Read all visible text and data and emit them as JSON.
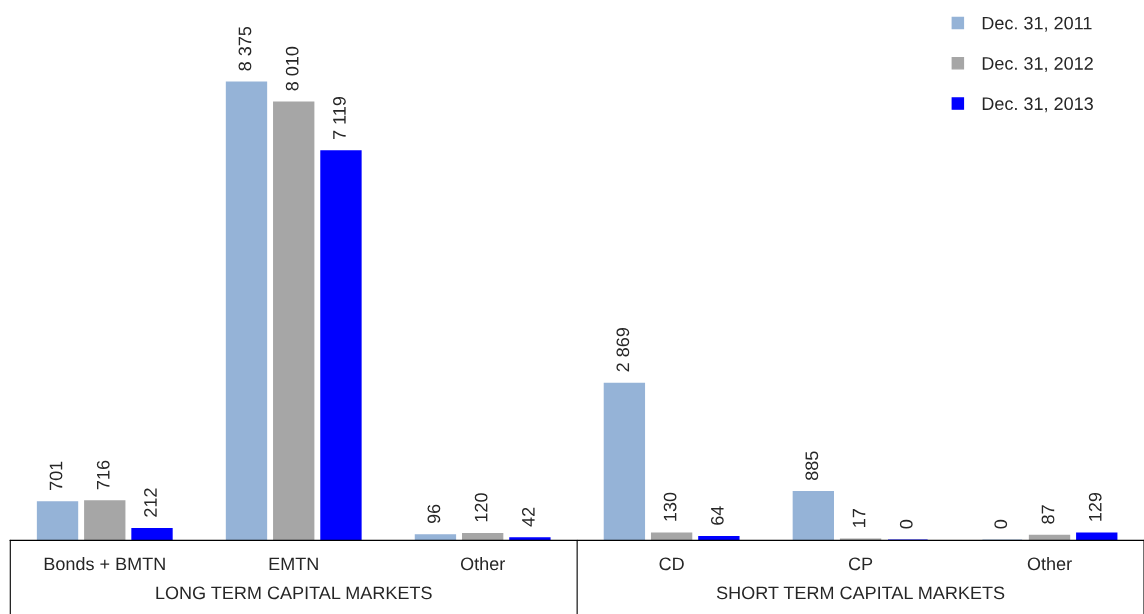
{
  "chart_data": {
    "type": "bar",
    "categories": [
      "Bonds + BMTN",
      "EMTN",
      "Other",
      "CD",
      "CP",
      "Other"
    ],
    "series": [
      {
        "name": "Dec. 31, 2011",
        "color": "#95b3d7",
        "values": [
          701,
          8375,
          96,
          2869,
          885,
          0
        ],
        "value_labels": [
          "701",
          "8 375",
          "96",
          "2 869",
          "885",
          "0"
        ]
      },
      {
        "name": "Dec. 31, 2012",
        "color": "#a6a6a6",
        "values": [
          716,
          8010,
          120,
          130,
          17,
          87
        ],
        "value_labels": [
          "716",
          "8 010",
          "120",
          "130",
          "17",
          "87"
        ]
      },
      {
        "name": "Dec. 31, 2013",
        "color": "#0000ff",
        "values": [
          212,
          7119,
          42,
          64,
          0,
          129
        ],
        "value_labels": [
          "212",
          "7 119",
          "42",
          "64",
          "0",
          "129"
        ]
      }
    ],
    "tick_labels": "x",
    "legend": "top right",
    "marker": "square",
    "grid": false,
    "annotations": [
      "LONG TERM CAPITAL MARKETS",
      "SHORT TERM CAPITAL MARKETS"
    ]
  }
}
